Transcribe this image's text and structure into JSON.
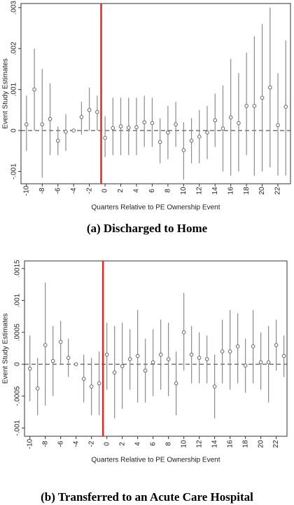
{
  "chart_data": [
    {
      "type": "errorbar",
      "caption": "(a) Discharged to Home",
      "ylabel": "Event Study Estimates",
      "xlabel": "Quarters Relative to PE Ownership Event",
      "x": [
        -10,
        -9,
        -8,
        -7,
        -6,
        -5,
        -4,
        -3,
        -2,
        -1,
        0,
        1,
        2,
        3,
        4,
        5,
        6,
        7,
        8,
        9,
        10,
        11,
        12,
        13,
        14,
        15,
        16,
        17,
        18,
        19,
        20,
        21,
        22,
        23
      ],
      "values": [
        0.00015,
        0.001,
        0.00015,
        0.00028,
        -0.00025,
        -3e-05,
        0,
        0.00033,
        0.0005,
        0.00045,
        -0.00018,
        6e-05,
        0.0001,
        7e-05,
        8e-05,
        0.0002,
        0.00018,
        -0.00028,
        -5e-05,
        0.00015,
        -0.00048,
        -0.00025,
        -0.00015,
        -5e-05,
        0.00025,
        5e-05,
        0.00032,
        0.00018,
        0.0006,
        0.0006,
        0.0008,
        0.00105,
        0.00013,
        0.00058
      ],
      "lower": [
        -0.0005,
        0,
        -0.00115,
        -0.0006,
        -0.0006,
        -0.0005,
        null,
        -0.0001,
        0,
        0,
        -0.00065,
        -0.0006,
        -0.0006,
        -0.0006,
        -0.0006,
        -0.0004,
        -0.0004,
        -0.0008,
        -0.0007,
        -0.0004,
        -0.0012,
        -0.0008,
        -0.0008,
        -0.0007,
        -0.0004,
        -0.001,
        -0.0011,
        -0.001,
        -0.0006,
        -0.0011,
        -0.001,
        -0.0009,
        -0.0011,
        -0.0011
      ],
      "upper": [
        0.00085,
        0.002,
        0.0015,
        0.00115,
        0.0001,
        0.0004,
        null,
        0.0007,
        0.00105,
        0.00085,
        0.00035,
        0.0008,
        0.0008,
        0.0008,
        0.0008,
        0.00085,
        0.0008,
        0.0003,
        0.0006,
        0.0007,
        0.0002,
        0.0003,
        0.0005,
        0.0006,
        0.0009,
        0.0011,
        0.00175,
        0.0014,
        0.0019,
        0.0023,
        0.0026,
        0.003,
        0.0014,
        0.0022
      ],
      "color": "#8c8c8c",
      "event_line": -0.5,
      "event_color": "#e8251f",
      "zero_line": 0,
      "xlim": [
        -10.7,
        23.6
      ],
      "ylim": [
        -0.0013,
        0.0031
      ],
      "xticks": [
        -10,
        -8,
        -6,
        -4,
        -2,
        0,
        2,
        4,
        6,
        8,
        10,
        12,
        14,
        16,
        18,
        20,
        22
      ],
      "yticks": [
        {
          "value": 0.003,
          "label": ".003"
        },
        {
          "value": 0.002,
          "label": ".002"
        },
        {
          "value": 0.001,
          "label": ".001"
        },
        0,
        {
          "value": -0.001,
          "label": "-.001"
        }
      ]
    },
    {
      "type": "errorbar",
      "caption": "(b) Transferred to an Acute Care Hospital",
      "ylabel": "Event Study Estimates",
      "xlabel": "Quarters Relative to PE Ownership Event",
      "x": [
        -10,
        -9,
        -8,
        -7,
        -6,
        -5,
        -4,
        -3,
        -2,
        -1,
        0,
        1,
        2,
        3,
        4,
        5,
        6,
        7,
        8,
        9,
        10,
        11,
        12,
        13,
        14,
        15,
        16,
        17,
        18,
        19,
        20,
        21,
        22,
        23
      ],
      "values": [
        -7e-05,
        -0.00038,
        0.0003,
        5e-05,
        0.00035,
        0.0001,
        0,
        -0.00023,
        -0.00035,
        -0.0003,
        0.00015,
        -0.00013,
        -3e-05,
        8e-05,
        0.00013,
        -0.0001,
        3e-05,
        0.00015,
        8e-05,
        -0.0003,
        0.0005,
        0.00015,
        0.0001,
        8e-05,
        -0.00035,
        0.0002,
        0.0002,
        0.00028,
        -2e-05,
        0.00028,
        3e-05,
        3e-05,
        0.0003,
        0.00013
      ],
      "lower": [
        -0.00058,
        -0.0008,
        -0.00065,
        -0.0005,
        0,
        -0.0002,
        null,
        -0.0006,
        -0.0008,
        -0.0008,
        -0.0004,
        -0.00085,
        -0.0007,
        -0.0004,
        -0.0006,
        -0.0006,
        -0.0005,
        -0.0004,
        -0.0005,
        -0.0008,
        -0.0001,
        -0.0003,
        -0.0003,
        -0.0003,
        -0.00085,
        -0.0003,
        -0.0004,
        -0.0003,
        -0.00045,
        -0.0003,
        -0.0004,
        -0.0006,
        -0.0001,
        -0.0002
      ],
      "upper": [
        0.00045,
        0.0001,
        0.00128,
        0.0006,
        0.00068,
        0.0004,
        null,
        0.00015,
        0.0001,
        0.0002,
        0.00065,
        0.0006,
        0.00065,
        0.00055,
        0.00085,
        0.0004,
        0.00055,
        0.0007,
        0.00065,
        0.0002,
        0.00112,
        0.0006,
        0.0005,
        0.00045,
        0.00015,
        0.0007,
        0.00085,
        0.0008,
        0.0004,
        0.00085,
        0.0005,
        0.0006,
        0.0007,
        0.00045
      ],
      "color": "#8c8c8c",
      "event_line": -0.5,
      "event_color": "#e8251f",
      "zero_line": 0,
      "xlim": [
        -10.7,
        23.4
      ],
      "ylim": [
        -0.00113,
        0.00162
      ],
      "xticks": [
        -10,
        -8,
        -6,
        -4,
        -2,
        0,
        2,
        4,
        6,
        8,
        10,
        12,
        14,
        16,
        18,
        20,
        22
      ],
      "yticks": [
        {
          "value": 0.0015,
          "label": ".0015"
        },
        {
          "value": 0.001,
          "label": ".001"
        },
        {
          "value": 0.0005,
          "label": ".0005"
        },
        0,
        {
          "value": -0.0005,
          "label": "-.0005"
        },
        {
          "value": -0.001,
          "label": "-.001"
        }
      ]
    }
  ]
}
